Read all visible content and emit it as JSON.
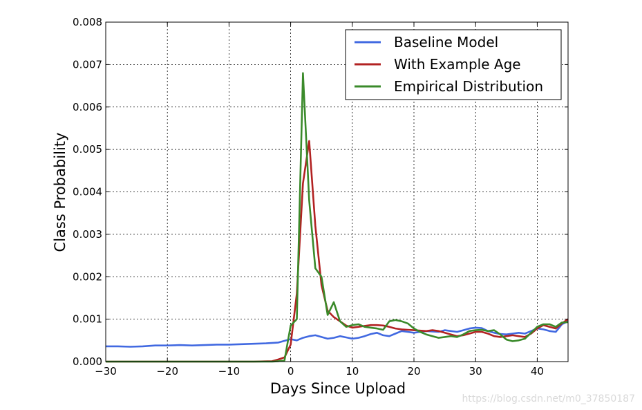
{
  "chart_data": {
    "type": "line",
    "title": "",
    "xlabel": "Days Since Upload",
    "ylabel": "Class Probability",
    "xlim": [
      -30,
      45
    ],
    "ylim": [
      0,
      0.008
    ],
    "xticks": [
      -30,
      -20,
      -10,
      0,
      10,
      20,
      30,
      40
    ],
    "xtick_labels": [
      "−30",
      "−20",
      "−10",
      "0",
      "10",
      "20",
      "30",
      "40"
    ],
    "yticks": [
      0,
      0.001,
      0.002,
      0.003,
      0.004,
      0.005,
      0.006,
      0.007,
      0.008
    ],
    "ytick_labels": [
      "0.000",
      "0.001",
      "0.002",
      "0.003",
      "0.004",
      "0.005",
      "0.006",
      "0.007",
      "0.008"
    ],
    "grid": true,
    "legend_position": "top-right",
    "series": [
      {
        "name": "Baseline Model",
        "color": "#4169e1",
        "x": [
          -30,
          -28,
          -26,
          -24,
          -22,
          -20,
          -18,
          -16,
          -14,
          -12,
          -10,
          -8,
          -6,
          -4,
          -2,
          0,
          1,
          2,
          3,
          4,
          5,
          6,
          7,
          8,
          9,
          10,
          11,
          12,
          13,
          14,
          15,
          16,
          17,
          18,
          19,
          20,
          21,
          22,
          23,
          24,
          25,
          26,
          27,
          28,
          29,
          30,
          31,
          32,
          33,
          34,
          35,
          36,
          37,
          38,
          39,
          40,
          41,
          42,
          43,
          44,
          45
        ],
        "y": [
          0.00036,
          0.00036,
          0.00035,
          0.00036,
          0.00038,
          0.00038,
          0.00039,
          0.00038,
          0.00039,
          0.0004,
          0.0004,
          0.00041,
          0.00042,
          0.00043,
          0.00045,
          0.00053,
          0.0005,
          0.00056,
          0.0006,
          0.00062,
          0.00058,
          0.00054,
          0.00056,
          0.0006,
          0.00057,
          0.00054,
          0.00056,
          0.0006,
          0.00065,
          0.00068,
          0.00062,
          0.0006,
          0.00066,
          0.00072,
          0.0007,
          0.00068,
          0.0007,
          0.00072,
          0.00071,
          0.0007,
          0.00074,
          0.00072,
          0.0007,
          0.00074,
          0.00078,
          0.0008,
          0.00079,
          0.00072,
          0.00068,
          0.00065,
          0.00064,
          0.00066,
          0.00068,
          0.00066,
          0.00072,
          0.00078,
          0.00076,
          0.00072,
          0.0007,
          0.00088,
          0.00095
        ]
      },
      {
        "name": "With Example Age",
        "color": "#b22222",
        "x": [
          -30,
          -26,
          -22,
          -18,
          -14,
          -10,
          -6,
          -3,
          -2,
          -1,
          0,
          1,
          2,
          3,
          4,
          5,
          6,
          7,
          8,
          9,
          10,
          11,
          12,
          13,
          14,
          15,
          16,
          17,
          18,
          19,
          20,
          21,
          22,
          23,
          24,
          25,
          26,
          27,
          28,
          29,
          30,
          31,
          32,
          33,
          34,
          35,
          36,
          37,
          38,
          39,
          40,
          41,
          42,
          43,
          44,
          45
        ],
        "y": [
          0,
          0,
          0,
          0,
          0,
          0,
          0,
          1e-05,
          5e-05,
          0.0001,
          0.0004,
          0.0016,
          0.0042,
          0.0052,
          0.0032,
          0.0018,
          0.0012,
          0.00105,
          0.00095,
          0.00085,
          0.0008,
          0.00082,
          0.00084,
          0.00086,
          0.00086,
          0.00085,
          0.00082,
          0.00078,
          0.00076,
          0.00075,
          0.00074,
          0.00073,
          0.00072,
          0.00074,
          0.00072,
          0.00068,
          0.00064,
          0.0006,
          0.00062,
          0.00066,
          0.0007,
          0.0007,
          0.00066,
          0.0006,
          0.00058,
          0.0006,
          0.00062,
          0.0006,
          0.00058,
          0.00066,
          0.00078,
          0.00086,
          0.00082,
          0.00078,
          0.0009,
          0.001
        ]
      },
      {
        "name": "Empirical Distribution",
        "color": "#3a8a2a",
        "x": [
          -30,
          -26,
          -22,
          -18,
          -14,
          -10,
          -6,
          -3,
          -2,
          -1,
          0,
          1,
          2,
          3,
          4,
          5,
          6,
          7,
          8,
          9,
          10,
          11,
          12,
          13,
          14,
          15,
          16,
          17,
          18,
          19,
          20,
          21,
          22,
          23,
          24,
          25,
          26,
          27,
          28,
          29,
          30,
          31,
          32,
          33,
          34,
          35,
          36,
          37,
          38,
          39,
          40,
          41,
          42,
          43,
          44,
          45
        ],
        "y": [
          0,
          0,
          0,
          0,
          0,
          0,
          0,
          0,
          1e-05,
          3e-05,
          0.00085,
          0.001,
          0.0068,
          0.0038,
          0.0022,
          0.002,
          0.0011,
          0.0014,
          0.00095,
          0.00082,
          0.00086,
          0.00088,
          0.00082,
          0.0008,
          0.00078,
          0.00075,
          0.00095,
          0.00098,
          0.00095,
          0.0009,
          0.00078,
          0.0007,
          0.00064,
          0.0006,
          0.00056,
          0.00058,
          0.0006,
          0.00058,
          0.00064,
          0.00072,
          0.00074,
          0.00075,
          0.00072,
          0.00074,
          0.00064,
          0.00052,
          0.00048,
          0.0005,
          0.00054,
          0.00068,
          0.00082,
          0.00088,
          0.00088,
          0.00082,
          0.00092,
          0.00093
        ]
      }
    ]
  },
  "watermark": "https://blog.csdn.net/m0_37850187"
}
